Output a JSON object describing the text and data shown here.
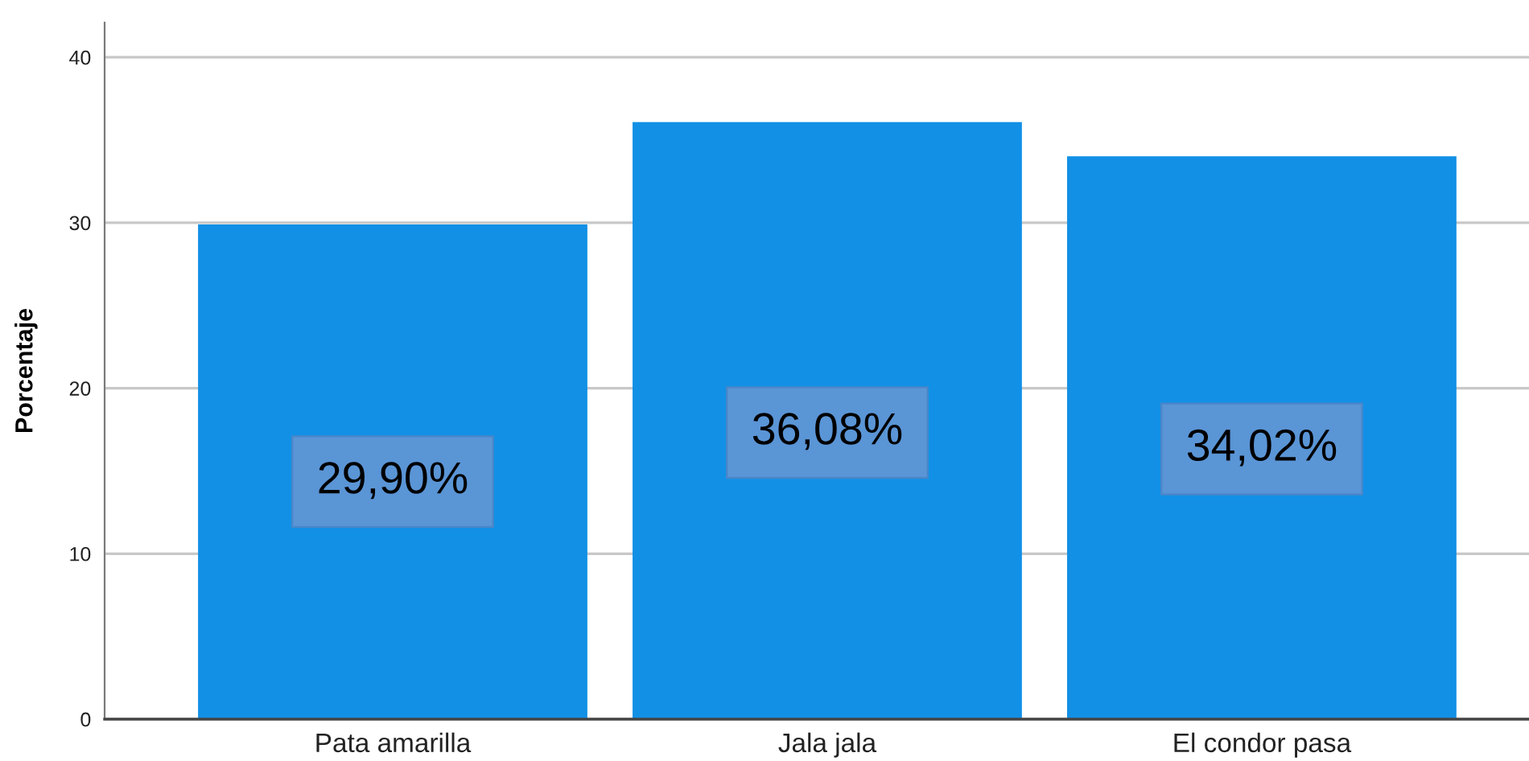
{
  "chart_data": {
    "type": "bar",
    "ylabel": "Porcentaje",
    "categories": [
      "Pata amarilla",
      "Jala jala",
      "El condor pasa"
    ],
    "values": [
      29.9,
      36.08,
      34.02
    ],
    "value_labels": [
      "29,90%",
      "36,08%",
      "34,02%"
    ],
    "color": "#1290e6",
    "ylim": [
      0,
      42.1
    ],
    "yticks": [
      0,
      10,
      20,
      30,
      40
    ],
    "grid": "y"
  }
}
